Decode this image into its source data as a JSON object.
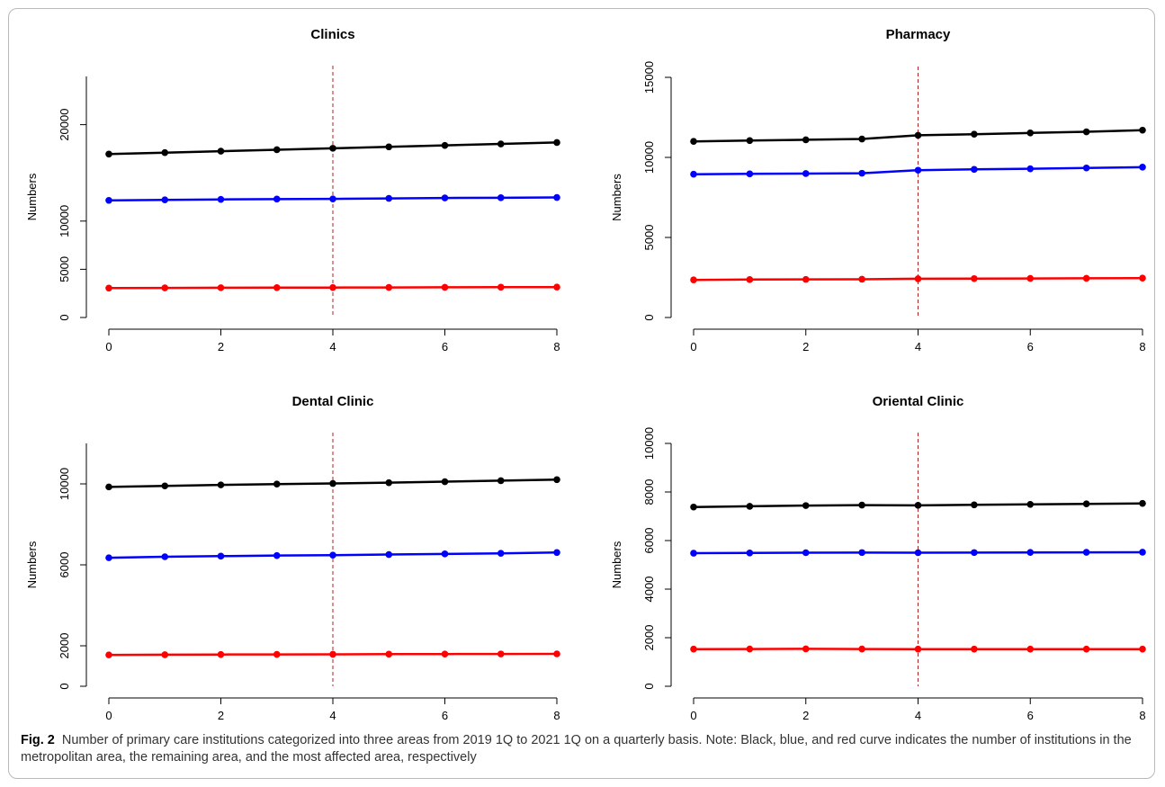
{
  "caption": {
    "label": "Fig. 2",
    "text": "Number of primary care institutions categorized into three areas from 2019 1Q to 2021 1Q on a quarterly basis. Note: Black, blue, and red curve indicates the number of institutions in the metropolitan area, the remaining area, and the most affected area, respectively"
  },
  "colors": {
    "metropolitan": "#000000",
    "remaining": "#0000ff",
    "most_affected": "#ff0000",
    "cutoff_line": "#b22222"
  },
  "chart_data": [
    {
      "type": "line",
      "title": "Clinics",
      "xlabel": "",
      "ylabel": "Numbers",
      "x": [
        0,
        1,
        2,
        3,
        4,
        5,
        6,
        7,
        8
      ],
      "xticks": [
        0,
        2,
        4,
        6,
        8
      ],
      "yticks": [
        0,
        5000,
        10000,
        20000
      ],
      "xlim": [
        0,
        8
      ],
      "ylim": [
        0,
        25000
      ],
      "vline_x": 4,
      "series": [
        {
          "color": "#000000",
          "values": [
            16950,
            17100,
            17250,
            17400,
            17550,
            17700,
            17850,
            18000,
            18150
          ]
        },
        {
          "color": "#0000ff",
          "values": [
            12150,
            12200,
            12250,
            12280,
            12300,
            12350,
            12400,
            12420,
            12450
          ]
        },
        {
          "color": "#ff0000",
          "values": [
            3050,
            3070,
            3090,
            3100,
            3110,
            3120,
            3130,
            3140,
            3150
          ]
        }
      ]
    },
    {
      "type": "line",
      "title": "Pharmacy",
      "xlabel": "",
      "ylabel": "Numbers",
      "x": [
        0,
        1,
        2,
        3,
        4,
        5,
        6,
        7,
        8
      ],
      "xticks": [
        0,
        2,
        4,
        6,
        8
      ],
      "yticks": [
        0,
        5000,
        10000,
        15000
      ],
      "xlim": [
        0,
        8
      ],
      "ylim": [
        0,
        15000
      ],
      "vline_x": 4,
      "series": [
        {
          "color": "#000000",
          "values": [
            11000,
            11050,
            11100,
            11150,
            11380,
            11450,
            11530,
            11600,
            11700
          ]
        },
        {
          "color": "#0000ff",
          "values": [
            8950,
            8970,
            8990,
            9010,
            9200,
            9250,
            9290,
            9340,
            9390
          ]
        },
        {
          "color": "#ff0000",
          "values": [
            2350,
            2370,
            2380,
            2390,
            2420,
            2430,
            2440,
            2450,
            2460
          ]
        }
      ]
    },
    {
      "type": "line",
      "title": "Dental Clinic",
      "xlabel": "",
      "ylabel": "Numbers",
      "x": [
        0,
        1,
        2,
        3,
        4,
        5,
        6,
        7,
        8
      ],
      "xticks": [
        0,
        2,
        4,
        6,
        8
      ],
      "yticks": [
        0,
        2000,
        6000,
        10000
      ],
      "xlim": [
        0,
        8
      ],
      "ylim": [
        0,
        12000
      ],
      "vline_x": 4,
      "series": [
        {
          "color": "#000000",
          "values": [
            9850,
            9900,
            9950,
            9990,
            10020,
            10060,
            10110,
            10160,
            10210
          ]
        },
        {
          "color": "#0000ff",
          "values": [
            6350,
            6400,
            6430,
            6460,
            6480,
            6510,
            6540,
            6570,
            6610
          ]
        },
        {
          "color": "#ff0000",
          "values": [
            1550,
            1560,
            1570,
            1575,
            1580,
            1585,
            1590,
            1595,
            1600
          ]
        }
      ]
    },
    {
      "type": "line",
      "title": "Oriental Clinic",
      "xlabel": "",
      "ylabel": "Numbers",
      "x": [
        0,
        1,
        2,
        3,
        4,
        5,
        6,
        7,
        8
      ],
      "xticks": [
        0,
        2,
        4,
        6,
        8
      ],
      "yticks": [
        0,
        2000,
        4000,
        6000,
        8000,
        10000
      ],
      "xlim": [
        0,
        8
      ],
      "ylim": [
        0,
        10000
      ],
      "vline_x": 4,
      "series": [
        {
          "color": "#000000",
          "values": [
            7380,
            7410,
            7440,
            7460,
            7450,
            7470,
            7490,
            7510,
            7530
          ]
        },
        {
          "color": "#0000ff",
          "values": [
            5480,
            5490,
            5500,
            5505,
            5500,
            5505,
            5510,
            5515,
            5520
          ]
        },
        {
          "color": "#ff0000",
          "values": [
            1530,
            1535,
            1540,
            1535,
            1530,
            1530,
            1530,
            1530,
            1530
          ]
        }
      ]
    }
  ]
}
